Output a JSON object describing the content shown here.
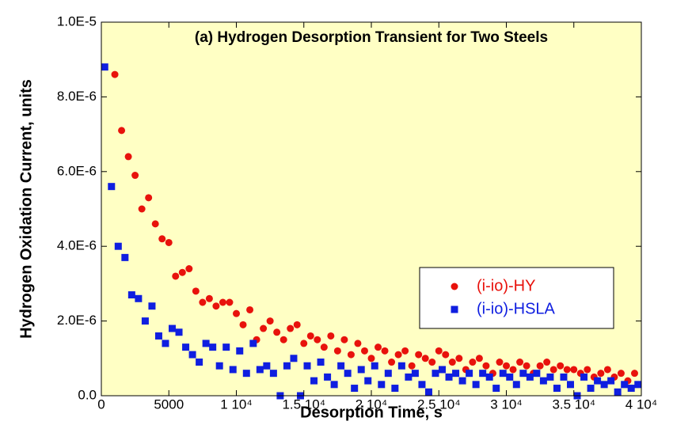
{
  "chart_data": {
    "type": "scatter",
    "title": "(a) Hydrogen Desorption Transient for Two Steels",
    "x_label": "Desorption Time, s",
    "y_label": "Hydrogen Oxidation Current, units",
    "xlim": [
      0,
      40000
    ],
    "xticks": [
      0,
      5000,
      {
        "value": 10000,
        "label": "1 10⁴"
      },
      {
        "value": 15000,
        "label": "1.5 10⁴"
      },
      {
        "value": 20000,
        "label": "2 10⁴"
      },
      {
        "value": 25000,
        "label": "2.5 10⁴"
      },
      {
        "value": 30000,
        "label": "3 10⁴"
      },
      {
        "value": 35000,
        "label": "3.5 10⁴"
      },
      {
        "value": 40000,
        "label": "4 10⁴"
      }
    ],
    "ylim": [
      0,
      1e-05
    ],
    "yticks": [
      {
        "value": 0,
        "label": "0.0"
      },
      {
        "value": 2e-06,
        "label": "2.0E-6"
      },
      {
        "value": 4e-06,
        "label": "4.0E-6"
      },
      {
        "value": 6e-06,
        "label": "6.0E-6"
      },
      {
        "value": 8e-06,
        "label": "8.0E-6"
      },
      {
        "value": 1e-05,
        "label": "1.0E-5"
      }
    ],
    "background": "#ffffc4",
    "legend": "lower right",
    "series": [
      {
        "name": "(i-io)-HY",
        "color": "#e8120c",
        "marker": "circle",
        "x": [
          1000,
          1500,
          2000,
          2500,
          3000,
          3500,
          4000,
          4500,
          5000,
          5500,
          6000,
          6500,
          7000,
          7500,
          8000,
          8500,
          9000,
          9500,
          10000,
          10500,
          11000,
          11500,
          12000,
          12500,
          13000,
          13500,
          14000,
          14500,
          15000,
          15500,
          16000,
          16500,
          17000,
          17500,
          18000,
          18500,
          19000,
          19500,
          20000,
          20500,
          21000,
          21500,
          22000,
          22500,
          23000,
          23500,
          24000,
          24500,
          25000,
          25500,
          26000,
          26500,
          27000,
          27500,
          28000,
          28500,
          29000,
          29500,
          30000,
          30500,
          31000,
          31500,
          32000,
          32500,
          33000,
          33500,
          34000,
          34500,
          35000,
          35500,
          36000,
          36500,
          37000,
          37500,
          38000,
          38500,
          39000,
          39500
        ],
        "values": [
          8.6e-06,
          7.1e-06,
          6.4e-06,
          5.9e-06,
          5e-06,
          5.3e-06,
          4.6e-06,
          4.2e-06,
          4.1e-06,
          3.2e-06,
          3.3e-06,
          3.4e-06,
          2.8e-06,
          2.5e-06,
          2.6e-06,
          2.4e-06,
          2.5e-06,
          2.5e-06,
          2.2e-06,
          1.9e-06,
          2.3e-06,
          1.5e-06,
          1.8e-06,
          2e-06,
          1.7e-06,
          1.5e-06,
          1.8e-06,
          1.9e-06,
          1.4e-06,
          1.6e-06,
          1.5e-06,
          1.3e-06,
          1.6e-06,
          1.2e-06,
          1.5e-06,
          1.1e-06,
          1.4e-06,
          1.2e-06,
          1e-06,
          1.3e-06,
          1.2e-06,
          9e-07,
          1.1e-06,
          1.2e-06,
          8e-07,
          1.1e-06,
          1e-06,
          9e-07,
          1.2e-06,
          1.1e-06,
          9e-07,
          1e-06,
          7e-07,
          9e-07,
          1e-06,
          8e-07,
          6e-07,
          9e-07,
          8e-07,
          7e-07,
          9e-07,
          8e-07,
          6e-07,
          8e-07,
          9e-07,
          7e-07,
          8e-07,
          7e-07,
          7e-07,
          6e-07,
          7e-07,
          5e-07,
          6e-07,
          7e-07,
          5e-07,
          6e-07,
          4e-07,
          6e-07
        ]
      },
      {
        "name": "(i-io)-HSLA",
        "color": "#0f1ee0",
        "marker": "square",
        "x": [
          250,
          750,
          1250,
          1750,
          2250,
          2750,
          3250,
          3750,
          4250,
          4750,
          5250,
          5750,
          6250,
          6750,
          7250,
          7750,
          8250,
          8750,
          9250,
          9750,
          10250,
          10750,
          11250,
          11750,
          12250,
          12750,
          13250,
          13750,
          14250,
          14750,
          15250,
          15750,
          16250,
          16750,
          17250,
          17750,
          18250,
          18750,
          19250,
          19750,
          20250,
          20750,
          21250,
          21750,
          22250,
          22750,
          23250,
          23750,
          24250,
          24750,
          25250,
          25750,
          26250,
          26750,
          27250,
          27750,
          28250,
          28750,
          29250,
          29750,
          30250,
          30750,
          31250,
          31750,
          32250,
          32750,
          33250,
          33750,
          34250,
          34750,
          35250,
          35750,
          36250,
          36750,
          37250,
          37750,
          38250,
          38750,
          39250,
          39750
        ],
        "values": [
          8.8e-06,
          5.6e-06,
          4e-06,
          3.7e-06,
          2.7e-06,
          2.6e-06,
          2e-06,
          2.4e-06,
          1.6e-06,
          1.4e-06,
          1.8e-06,
          1.7e-06,
          1.3e-06,
          1.1e-06,
          9e-07,
          1.4e-06,
          1.3e-06,
          8e-07,
          1.3e-06,
          7e-07,
          1.2e-06,
          6e-07,
          1.4e-06,
          7e-07,
          8e-07,
          6e-07,
          0,
          8e-07,
          1e-06,
          0,
          8e-07,
          4e-07,
          9e-07,
          5e-07,
          3e-07,
          8e-07,
          6e-07,
          2e-07,
          7e-07,
          4e-07,
          8e-07,
          3e-07,
          6e-07,
          2e-07,
          8e-07,
          5e-07,
          6e-07,
          3e-07,
          1e-07,
          6e-07,
          7e-07,
          5e-07,
          6e-07,
          4e-07,
          6e-07,
          3e-07,
          6e-07,
          5e-07,
          2e-07,
          6e-07,
          5e-07,
          3e-07,
          6e-07,
          5e-07,
          6e-07,
          4e-07,
          5e-07,
          2e-07,
          5e-07,
          3e-07,
          0,
          5e-07,
          2e-07,
          4e-07,
          3e-07,
          4e-07,
          1e-07,
          3e-07,
          2e-07,
          3e-07
        ]
      }
    ]
  }
}
